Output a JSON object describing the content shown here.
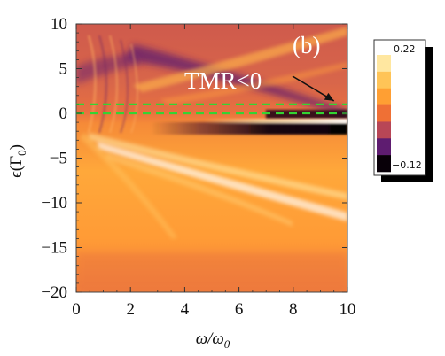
{
  "chart_data": {
    "type": "heatmap",
    "panel_label": "(b)",
    "xlabel": "ω/ω",
    "xlabel_sub": "0",
    "ylabel": "ϵ(Γ",
    "ylabel_sub": "0",
    "ylabel_close": ")",
    "xlim": [
      0,
      10
    ],
    "ylim": [
      -20,
      10
    ],
    "x_ticks": [
      "0",
      "2",
      "4",
      "6",
      "8",
      "10"
    ],
    "y_ticks": [
      "10",
      "5",
      "0",
      "−5",
      "−10",
      "−15",
      "−20"
    ],
    "annotation": {
      "text": "TMR<0",
      "arrow_to": [
        9.5,
        1.0
      ]
    },
    "dashed_band": {
      "y_lower": 0.0,
      "y_upper": 1.0,
      "color": "#33d433"
    },
    "colorbar": {
      "max_label": "0.22",
      "min_label": "−0.12",
      "colors": [
        "#ffe7a0",
        "#ffc457",
        "#ff9f33",
        "#ef7035",
        "#b84656",
        "#5e1c70",
        "#080008"
      ]
    },
    "colors": {
      "background": "#ff8a36",
      "lower_region": "#ffa739",
      "upper_region": "#d8604a",
      "dark_band": "#140612",
      "light_streak": "#fff0b8"
    }
  }
}
